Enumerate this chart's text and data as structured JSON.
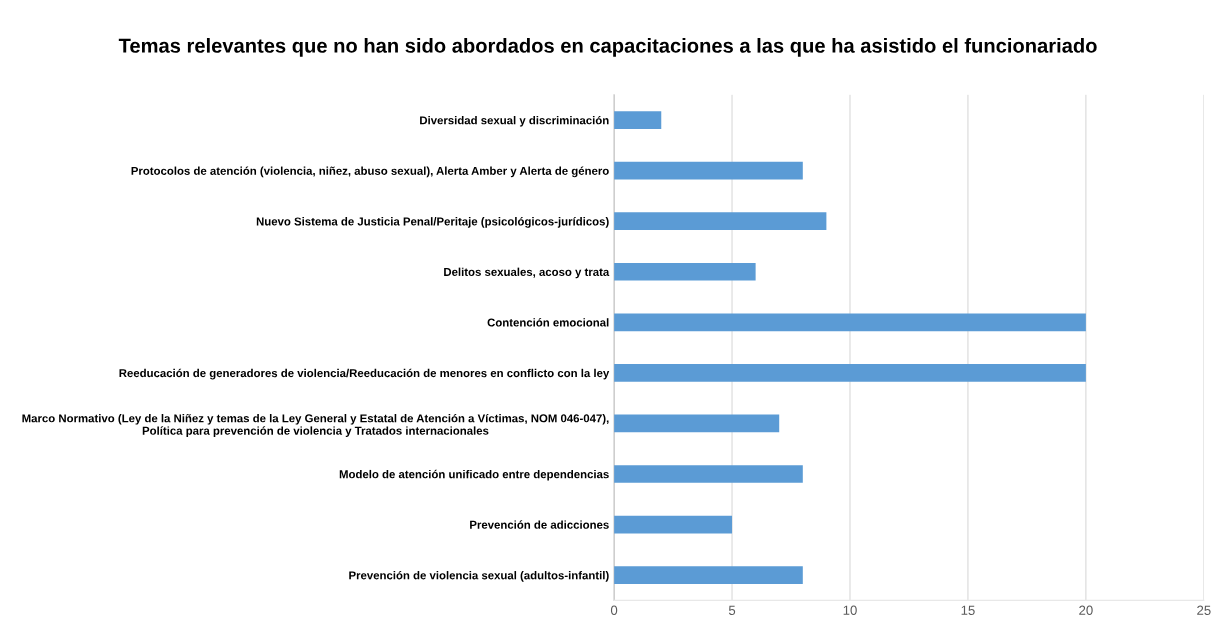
{
  "chart_data": {
    "type": "bar",
    "orientation": "horizontal",
    "title": "Temas relevantes que no han sido abordados en capacitaciones a las que ha asistido el funcionariado",
    "categories": [
      "Diversidad sexual y discriminación",
      "Protocolos de atención (violencia, niñez, abuso sexual), Alerta Amber y Alerta de género",
      "Nuevo Sistema de Justicia Penal/Peritaje (psicológicos-jurídicos)",
      "Delitos sexuales, acoso y trata",
      "Contención emocional",
      "Reeducación de generadores de violencia/Reeducación de menores en conflicto con la ley",
      "Marco Normativo (Ley de la Niñez y temas de la Ley General y Estatal de Atención a Víctimas, NOM 046-047),\nPolítica para prevención de violencia y Tratados internacionales",
      "Modelo de atención unificado entre dependencias",
      "Prevención de adicciones",
      "Prevención de violencia sexual (adultos-infantil)"
    ],
    "values": [
      2,
      8,
      9,
      6,
      20,
      20,
      7,
      8,
      5,
      8
    ],
    "color": "#5b9bd5",
    "xlim": [
      0,
      25
    ],
    "xticks": [
      0,
      5,
      10,
      15,
      20,
      25
    ],
    "grid": "x"
  }
}
